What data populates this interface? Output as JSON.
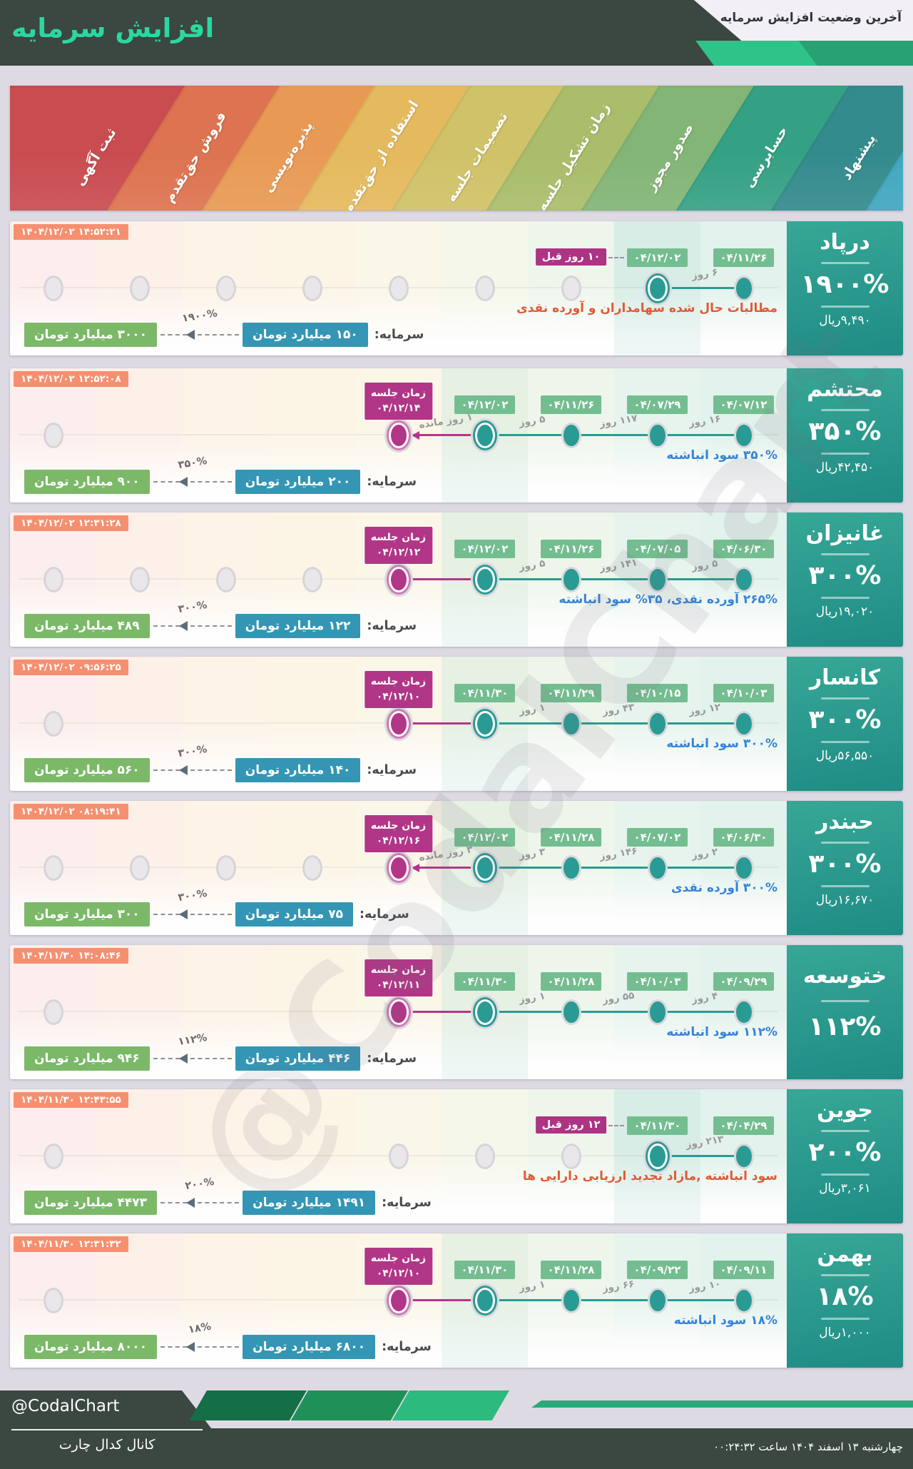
{
  "header": {
    "title": "افزایش سرمایه",
    "corner_note": "آخرین وضعیت افزایش سرمایه"
  },
  "watermark": "@CodalChart",
  "labels": {
    "capital": "سرمایه:",
    "meeting_badge": "زمان جلسه"
  },
  "stages_right_to_left": [
    "پیشنهاد",
    "حسابرسی",
    "صدور مجوز",
    "زمان تشکیل جلسه",
    "تصمیمات جلسه",
    "استفاده از حق‌تقدم",
    "پذیره‌نویسی",
    "فروش حق‌تقدم",
    "ثبت آگهی"
  ],
  "stripes_left_to_right": [
    {
      "label": "ثبت آگهی",
      "color": "#c94c51"
    },
    {
      "label": "فروش حق‌تقدم",
      "color": "#dd7350"
    },
    {
      "label": "پذیره‌نویسی",
      "color": "#e89a55"
    },
    {
      "label": "استفاده از حق‌تقدم",
      "color": "#e5ba5e"
    },
    {
      "label": "تصمیمات جلسه",
      "color": "#cfc268"
    },
    {
      "label": "زمان تشکیل جلسه",
      "color": "#a9bd6b"
    },
    {
      "label": "صدور مجوز",
      "color": "#83b576"
    },
    {
      "label": "حسابرسی",
      "color": "#35a184"
    },
    {
      "label": "پیشنهاد",
      "color": "#338b8d"
    },
    {
      "label": "",
      "color": "#41a7c0"
    }
  ],
  "companies": [
    {
      "symbol": "درپاد",
      "timestamp": "۱۴۰۴/۱۲/۰۲ ۱۴:۵۲:۲۱",
      "percent": "۱۹۰۰%",
      "price": "۹,۴۹۰ریال",
      "note": {
        "text": "مطالبات حال شده سهامداران و آورده نقدی",
        "color": "red"
      },
      "capital": {
        "from": "۱۵۰ میلیارد تومان",
        "to": "۳۰۰۰ میلیارد تومان",
        "pct": "۱۹۰۰%"
      },
      "dots": [
        {
          "stage": 0,
          "type": "active",
          "date": "۰۴/۱۱/۲۶"
        },
        {
          "stage": 1,
          "type": "ringed",
          "date": "۰۴/۱۲/۰۲"
        }
      ],
      "gray_stages": [
        2,
        3,
        4,
        5,
        6,
        7,
        8
      ],
      "segments": [
        {
          "from": 0,
          "to": 1,
          "label": "۶ روز",
          "style": "teal"
        }
      ],
      "ago": {
        "stage": 1,
        "label": "۱۰ روز قبل"
      }
    },
    {
      "symbol": "محتشم",
      "timestamp": "۱۴۰۴/۱۲/۰۲ ۱۲:۵۲:۰۸",
      "percent": "۳۵۰%",
      "price": "۴۲,۴۵۰ریال",
      "note": {
        "text": "۳۵۰% سود انباشته",
        "color": "blue"
      },
      "capital": {
        "from": "۲۰۰ میلیارد تومان",
        "to": "۹۰۰ میلیارد تومان",
        "pct": "۳۵۰%"
      },
      "dots": [
        {
          "stage": 0,
          "type": "active",
          "date": "۰۴/۰۷/۱۲"
        },
        {
          "stage": 1,
          "type": "active",
          "date": "۰۴/۰۷/۲۹"
        },
        {
          "stage": 2,
          "type": "active",
          "date": "۰۴/۱۱/۲۶"
        },
        {
          "stage": 3,
          "type": "ringed",
          "date": "۰۴/۱۲/۰۲"
        },
        {
          "stage": 4,
          "type": "meeting",
          "date": "۰۴/۱۲/۱۴"
        }
      ],
      "gray_stages": [
        8
      ],
      "segments": [
        {
          "from": 0,
          "to": 1,
          "label": "۱۶ روز",
          "style": "teal"
        },
        {
          "from": 1,
          "to": 2,
          "label": "۱۱۷ روز",
          "style": "teal"
        },
        {
          "from": 2,
          "to": 3,
          "label": "۵ روز",
          "style": "teal"
        },
        {
          "from": 3,
          "to": 4,
          "label": "۱ روز مانده",
          "style": "magenta",
          "arrow": true
        }
      ]
    },
    {
      "symbol": "غانیزان",
      "timestamp": "۱۴۰۴/۱۲/۰۲ ۱۲:۳۱:۲۸",
      "percent": "۳۰۰%",
      "price": "۱۹,۰۲۰ریال",
      "note": {
        "text": "۲۶۵% آورده نقدی، ۳۵% سود انباشته",
        "color": "blue"
      },
      "capital": {
        "from": "۱۲۲ میلیارد تومان",
        "to": "۴۸۹ میلیارد تومان",
        "pct": "۳۰۰%"
      },
      "dots": [
        {
          "stage": 0,
          "type": "active",
          "date": "۰۴/۰۶/۳۰"
        },
        {
          "stage": 1,
          "type": "active",
          "date": "۰۴/۰۷/۰۵"
        },
        {
          "stage": 2,
          "type": "active",
          "date": "۰۴/۱۱/۲۶"
        },
        {
          "stage": 3,
          "type": "ringed",
          "date": "۰۴/۱۲/۰۲"
        },
        {
          "stage": 4,
          "type": "meeting",
          "date": "۰۴/۱۲/۱۲"
        }
      ],
      "gray_stages": [
        5,
        6,
        7,
        8
      ],
      "segments": [
        {
          "from": 0,
          "to": 1,
          "label": "۵ روز",
          "style": "teal"
        },
        {
          "from": 1,
          "to": 2,
          "label": "۱۴۱ روز",
          "style": "teal"
        },
        {
          "from": 2,
          "to": 3,
          "label": "۵ روز",
          "style": "teal"
        },
        {
          "from": 3,
          "to": 4,
          "label": "",
          "style": "magenta"
        }
      ]
    },
    {
      "symbol": "کانسار",
      "timestamp": "۱۴۰۴/۱۲/۰۲ ۰۹:۵۶:۲۵",
      "percent": "۳۰۰%",
      "price": "۵۶,۵۵۰ریال",
      "note": {
        "text": "۳۰۰% سود انباشته",
        "color": "blue"
      },
      "capital": {
        "from": "۱۴۰ میلیارد تومان",
        "to": "۵۶۰ میلیارد تومان",
        "pct": "۳۰۰%"
      },
      "dots": [
        {
          "stage": 0,
          "type": "active",
          "date": "۰۴/۱۰/۰۳"
        },
        {
          "stage": 1,
          "type": "active",
          "date": "۰۴/۱۰/۱۵"
        },
        {
          "stage": 2,
          "type": "active",
          "date": "۰۴/۱۱/۲۹"
        },
        {
          "stage": 3,
          "type": "ringed",
          "date": "۰۴/۱۱/۳۰"
        },
        {
          "stage": 4,
          "type": "meeting",
          "date": "۰۴/۱۲/۱۰"
        }
      ],
      "gray_stages": [
        8
      ],
      "segments": [
        {
          "from": 0,
          "to": 1,
          "label": "۱۲ روز",
          "style": "teal"
        },
        {
          "from": 1,
          "to": 2,
          "label": "۴۳ روز",
          "style": "teal"
        },
        {
          "from": 2,
          "to": 3,
          "label": "۱ روز",
          "style": "teal"
        },
        {
          "from": 3,
          "to": 4,
          "label": "",
          "style": "magenta"
        }
      ]
    },
    {
      "symbol": "حبندر",
      "timestamp": "۱۴۰۴/۱۲/۰۲ ۰۸:۱۹:۴۱",
      "percent": "۳۰۰%",
      "price": "۱۶,۶۷۰ریال",
      "note": {
        "text": "۳۰۰% آورده نقدی",
        "color": "blue"
      },
      "capital": {
        "from": "۷۵ میلیارد تومان",
        "to": "۳۰۰ میلیارد تومان",
        "pct": "۳۰۰%"
      },
      "dots": [
        {
          "stage": 0,
          "type": "active",
          "date": "۰۴/۰۶/۳۰"
        },
        {
          "stage": 1,
          "type": "active",
          "date": "۰۴/۰۷/۰۲"
        },
        {
          "stage": 2,
          "type": "active",
          "date": "۰۴/۱۱/۲۸"
        },
        {
          "stage": 3,
          "type": "ringed",
          "date": "۰۴/۱۲/۰۲"
        },
        {
          "stage": 4,
          "type": "meeting",
          "date": "۰۴/۱۲/۱۶"
        }
      ],
      "gray_stages": [
        5,
        6,
        7,
        8
      ],
      "segments": [
        {
          "from": 0,
          "to": 1,
          "label": "۲ روز",
          "style": "teal"
        },
        {
          "from": 1,
          "to": 2,
          "label": "۱۴۶ روز",
          "style": "teal"
        },
        {
          "from": 2,
          "to": 3,
          "label": "۳ روز",
          "style": "teal"
        },
        {
          "from": 3,
          "to": 4,
          "label": "۳ روز مانده",
          "style": "magenta",
          "arrow": true
        }
      ]
    },
    {
      "symbol": "ختوسعه",
      "timestamp": "۱۴۰۴/۱۱/۳۰ ۱۴:۰۸:۴۶",
      "percent": "۱۱۲%",
      "price": null,
      "note": {
        "text": "۱۱۲% سود انباشته",
        "color": "blue"
      },
      "capital": {
        "from": "۴۴۶ میلیارد تومان",
        "to": "۹۴۶ میلیارد تومان",
        "pct": "۱۱۲%"
      },
      "dots": [
        {
          "stage": 0,
          "type": "active",
          "date": "۰۴/۰۹/۲۹"
        },
        {
          "stage": 1,
          "type": "active",
          "date": "۰۴/۱۰/۰۳"
        },
        {
          "stage": 2,
          "type": "active",
          "date": "۰۴/۱۱/۲۸"
        },
        {
          "stage": 3,
          "type": "ringed",
          "date": "۰۴/۱۱/۳۰"
        },
        {
          "stage": 4,
          "type": "meeting",
          "date": "۰۴/۱۲/۱۱"
        }
      ],
      "gray_stages": [
        8
      ],
      "segments": [
        {
          "from": 0,
          "to": 1,
          "label": "۴ روز",
          "style": "teal"
        },
        {
          "from": 1,
          "to": 2,
          "label": "۵۵ روز",
          "style": "teal"
        },
        {
          "from": 2,
          "to": 3,
          "label": "۱ روز",
          "style": "teal"
        },
        {
          "from": 3,
          "to": 4,
          "label": "",
          "style": "magenta"
        }
      ]
    },
    {
      "symbol": "جوین",
      "timestamp": "۱۴۰۴/۱۱/۳۰ ۱۲:۴۳:۵۵",
      "percent": "۲۰۰%",
      "price": "۳,۰۶۱ریال",
      "note": {
        "text": "سود انباشته ,مازاد تجدید ارزیابی دارایی ها",
        "color": "red"
      },
      "capital": {
        "from": "۱۴۹۱ میلیارد تومان",
        "to": "۴۴۷۳ میلیارد تومان",
        "pct": "۲۰۰%"
      },
      "dots": [
        {
          "stage": 0,
          "type": "active",
          "date": "۰۴/۰۴/۲۹"
        },
        {
          "stage": 1,
          "type": "ringed",
          "date": "۰۴/۱۱/۳۰"
        }
      ],
      "gray_stages": [
        2,
        3,
        4,
        8
      ],
      "segments": [
        {
          "from": 0,
          "to": 1,
          "label": "۲۱۳ روز",
          "style": "teal"
        }
      ],
      "ago": {
        "stage": 1,
        "label": "۱۲ روز قبل"
      }
    },
    {
      "symbol": "بهمن",
      "timestamp": "۱۴۰۴/۱۱/۳۰ ۱۲:۳۱:۳۲",
      "percent": "۱۸%",
      "price": "۱,۰۰۰ریال",
      "note": {
        "text": "۱۸% سود انباشته",
        "color": "blue"
      },
      "capital": {
        "from": "۶۸۰۰ میلیارد تومان",
        "to": "۸۰۰۰ میلیارد تومان",
        "pct": "۱۸%"
      },
      "dots": [
        {
          "stage": 0,
          "type": "active",
          "date": "۰۴/۰۹/۱۱"
        },
        {
          "stage": 1,
          "type": "active",
          "date": "۰۴/۰۹/۲۲"
        },
        {
          "stage": 2,
          "type": "active",
          "date": "۰۴/۱۱/۲۸"
        },
        {
          "stage": 3,
          "type": "ringed",
          "date": "۰۴/۱۱/۳۰"
        },
        {
          "stage": 4,
          "type": "meeting",
          "date": "۰۴/۱۲/۱۰"
        }
      ],
      "gray_stages": [
        8
      ],
      "segments": [
        {
          "from": 0,
          "to": 1,
          "label": "۱۰ روز",
          "style": "teal"
        },
        {
          "from": 1,
          "to": 2,
          "label": "۶۶ روز",
          "style": "teal"
        },
        {
          "from": 2,
          "to": 3,
          "label": "۱ روز",
          "style": "teal"
        },
        {
          "from": 3,
          "to": 4,
          "label": "",
          "style": "magenta"
        }
      ]
    }
  ],
  "footer": {
    "brand": "@CodalChart",
    "channel": "کانال کدال چارت",
    "datetime": "چهارشنبه ۱۳ اسفند ۱۴۰۴ ساعت ۰۰:۲۴:۳۲"
  },
  "colors": {
    "header_bg": "#3b4741",
    "title": "#2bd7a0",
    "active_dot": "#2a9b94",
    "meeting_dot": "#b13687",
    "timestamp_badge": "#f68f70",
    "date_badge": "#74bd90",
    "ago_badge": "#ac3483",
    "capital_from_badge": "#3496b4",
    "capital_to_badge": "#7bb968",
    "note_blue": "#3583d8",
    "note_red": "#e05a35",
    "footer_greens": [
      "#156f46",
      "#1e9159",
      "#2cba7f",
      "#2aaa7a"
    ]
  }
}
